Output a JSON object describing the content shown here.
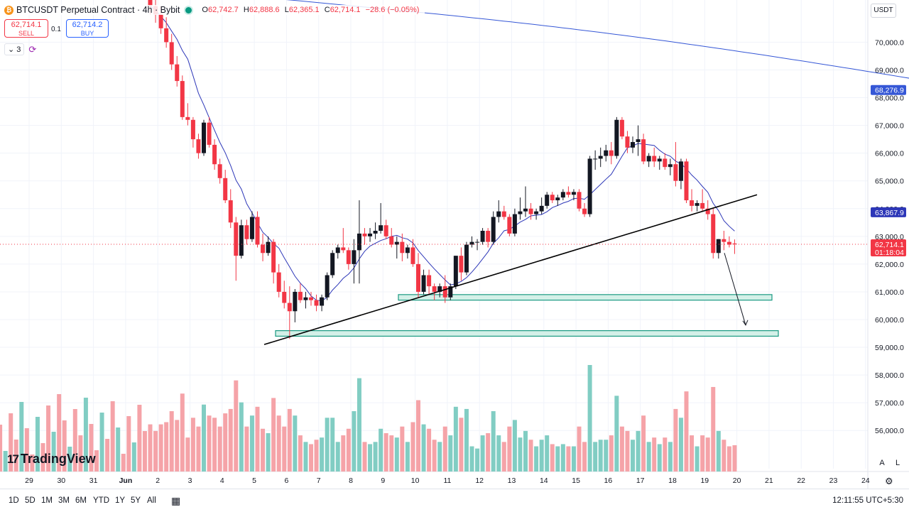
{
  "header": {
    "symbol_title": "BTCUSDT Perpetual Contract · 4h · Bybit",
    "ohlc": [
      {
        "k": "O",
        "v": "62,742.7"
      },
      {
        "k": "H",
        "v": "62,888.6"
      },
      {
        "k": "L",
        "v": "62,365.1"
      },
      {
        "k": "C",
        "v": "62,714.1"
      },
      {
        "k": "",
        "v": "−28.6 (−0.05%)"
      }
    ]
  },
  "trade": {
    "sell_price": "62,714.1",
    "sell_label": "SELL",
    "spread": "0.1",
    "buy_price": "62,714.2",
    "buy_label": "BUY"
  },
  "indicators_count": "3",
  "currency": "USDT",
  "logo_text": "TradingView",
  "timeframes": [
    "1D",
    "5D",
    "1M",
    "3M",
    "6M",
    "YTD",
    "1Y",
    "5Y",
    "All"
  ],
  "clock": "12:11:55 UTC+5:30",
  "scale_buttons": {
    "auto": "A",
    "log": "L"
  },
  "colors": {
    "up": "#131722",
    "down": "#f23645",
    "vol_up": "#81cdc3",
    "vol_down": "#f5a3a8",
    "ma_fast": "#2d37b8",
    "ma_slow": "#3557d6",
    "zone_fill": "#d4f0e8",
    "zone_stroke": "#1a9a82"
  },
  "chart_data": {
    "type": "candlestick",
    "timeframe": "4h",
    "ylim": [
      55200,
      71500
    ],
    "y_ticks": [
      56000,
      57000,
      58000,
      59000,
      60000,
      61000,
      62000,
      63000,
      64000,
      65000,
      66000,
      67000,
      68000,
      69000,
      70000
    ],
    "x_ticks": [
      "29",
      "30",
      "31",
      "Jun",
      "2",
      "3",
      "4",
      "5",
      "6",
      "7",
      "8",
      "9",
      "10",
      "11",
      "12",
      "13",
      "14",
      "15",
      "16",
      "17",
      "18",
      "19",
      "20",
      "21",
      "22",
      "23",
      "24"
    ],
    "candles": [
      [
        71800,
        72000,
        71000,
        71300
      ],
      [
        71300,
        71600,
        70700,
        71000
      ],
      [
        71000,
        71300,
        70300,
        70500
      ],
      [
        70500,
        70900,
        69800,
        70000
      ],
      [
        70000,
        70300,
        69000,
        69200
      ],
      [
        69200,
        69500,
        68400,
        68600
      ],
      [
        68600,
        68800,
        67200,
        67300
      ],
      [
        67300,
        67800,
        67000,
        67200
      ],
      [
        67200,
        67300,
        66200,
        66500
      ],
      [
        66500,
        66700,
        65800,
        66000
      ],
      [
        66000,
        67200,
        65900,
        67100
      ],
      [
        67100,
        67300,
        66200,
        66300
      ],
      [
        66300,
        66500,
        65400,
        65600
      ],
      [
        65600,
        65800,
        64900,
        65100
      ],
      [
        65100,
        65400,
        64200,
        64300
      ],
      [
        64300,
        64700,
        63300,
        63500
      ],
      [
        63500,
        63700,
        61400,
        62300
      ],
      [
        62300,
        63600,
        62200,
        63400
      ],
      [
        63400,
        63600,
        62700,
        62900
      ],
      [
        62900,
        63900,
        62800,
        63700
      ],
      [
        63700,
        63900,
        62600,
        62700
      ],
      [
        62700,
        63100,
        62100,
        62400
      ],
      [
        62400,
        63000,
        62300,
        62800
      ],
      [
        62800,
        62900,
        61300,
        61700
      ],
      [
        61700,
        62000,
        60800,
        61000
      ],
      [
        61000,
        61400,
        60400,
        60600
      ],
      [
        60600,
        61200,
        59300,
        60300
      ],
      [
        60300,
        61100,
        59900,
        61000
      ],
      [
        61000,
        61300,
        60600,
        60700
      ],
      [
        60700,
        61000,
        60400,
        60800
      ],
      [
        60800,
        61000,
        60500,
        60700
      ],
      [
        60700,
        60900,
        60300,
        60500
      ],
      [
        60500,
        60900,
        60300,
        60800
      ],
      [
        60800,
        61700,
        60700,
        61600
      ],
      [
        61600,
        62500,
        61500,
        62400
      ],
      [
        62400,
        62700,
        62200,
        62600
      ],
      [
        62600,
        63300,
        62400,
        62500
      ],
      [
        62500,
        62600,
        61800,
        62000
      ],
      [
        62000,
        62900,
        61300,
        62500
      ],
      [
        62500,
        64300,
        61300,
        63100
      ],
      [
        63100,
        63300,
        62700,
        63000
      ],
      [
        63000,
        63300,
        62800,
        63100
      ],
      [
        63100,
        63500,
        62900,
        63200
      ],
      [
        63200,
        64200,
        63100,
        63400
      ],
      [
        63400,
        63600,
        62900,
        63000
      ],
      [
        63000,
        63300,
        62600,
        62700
      ],
      [
        62700,
        63000,
        62200,
        62800
      ],
      [
        62800,
        63100,
        62100,
        62400
      ],
      [
        62400,
        62700,
        62200,
        62600
      ],
      [
        62600,
        62900,
        61900,
        62000
      ],
      [
        62000,
        62400,
        60800,
        61000
      ],
      [
        61000,
        61800,
        60900,
        61600
      ],
      [
        61600,
        61800,
        60900,
        61200
      ],
      [
        61200,
        61300,
        60700,
        61000
      ],
      [
        61000,
        61300,
        60800,
        61200
      ],
      [
        61200,
        61600,
        60600,
        60800
      ],
      [
        60800,
        61300,
        60700,
        61200
      ],
      [
        61200,
        62300,
        61100,
        62300
      ],
      [
        62300,
        62600,
        61400,
        61700
      ],
      [
        61700,
        62800,
        61600,
        62700
      ],
      [
        62700,
        63000,
        62600,
        62800
      ],
      [
        62800,
        62900,
        62500,
        62800
      ],
      [
        62800,
        63300,
        62700,
        63200
      ],
      [
        63200,
        63300,
        62600,
        62800
      ],
      [
        62800,
        63900,
        62700,
        63700
      ],
      [
        63700,
        64300,
        63500,
        63900
      ],
      [
        63900,
        64100,
        63600,
        63700
      ],
      [
        63700,
        63800,
        63000,
        63100
      ],
      [
        63100,
        64000,
        63000,
        63800
      ],
      [
        63800,
        64400,
        63600,
        63900
      ],
      [
        63900,
        64800,
        63700,
        64000
      ],
      [
        64000,
        64200,
        63600,
        63800
      ],
      [
        63800,
        64000,
        63600,
        63900
      ],
      [
        63900,
        64400,
        63800,
        64100
      ],
      [
        64100,
        64600,
        64000,
        64500
      ],
      [
        64500,
        64600,
        64200,
        64300
      ],
      [
        64300,
        64500,
        64100,
        64400
      ],
      [
        64400,
        64700,
        64300,
        64600
      ],
      [
        64600,
        64800,
        64400,
        64500
      ],
      [
        64500,
        64700,
        64300,
        64600
      ],
      [
        64600,
        64700,
        63900,
        64000
      ],
      [
        64000,
        64200,
        63700,
        63800
      ],
      [
        63800,
        65900,
        63700,
        65800
      ],
      [
        65800,
        66100,
        65400,
        65800
      ],
      [
        65800,
        66200,
        65500,
        65900
      ],
      [
        65900,
        66300,
        65700,
        66100
      ],
      [
        66100,
        66400,
        65600,
        65900
      ],
      [
        65900,
        67300,
        65800,
        67200
      ],
      [
        67200,
        67300,
        66500,
        66600
      ],
      [
        66600,
        66800,
        66000,
        66200
      ],
      [
        66200,
        66600,
        66000,
        66400
      ],
      [
        66400,
        67000,
        65900,
        66500
      ],
      [
        66500,
        66700,
        65600,
        65700
      ],
      [
        65700,
        66000,
        65500,
        65900
      ],
      [
        65900,
        66200,
        65500,
        65700
      ],
      [
        65700,
        65900,
        65400,
        65800
      ],
      [
        65800,
        66000,
        65400,
        65500
      ],
      [
        65500,
        65800,
        65200,
        65600
      ],
      [
        65600,
        66400,
        64800,
        65000
      ],
      [
        65000,
        65800,
        64700,
        65700
      ],
      [
        65700,
        65800,
        64200,
        64300
      ],
      [
        64300,
        64700,
        63900,
        64100
      ],
      [
        64100,
        64300,
        63900,
        64200
      ],
      [
        64200,
        64700,
        63900,
        64000
      ],
      [
        64000,
        64300,
        63600,
        63800
      ],
      [
        63800,
        64000,
        62200,
        62400
      ],
      [
        62400,
        62900,
        62200,
        62900
      ],
      [
        62900,
        63200,
        62500,
        62800
      ],
      [
        62800,
        63000,
        62600,
        62700
      ],
      [
        62742.7,
        62888.6,
        62365.1,
        62714.1
      ]
    ],
    "volume_note": "volume bars drawn relative, scale not labeled",
    "last_price": "62,714.1",
    "last_price_countdown": "01:18:04",
    "ma_slow_label": "68,276.9",
    "ma_fast_label": "63,867.9",
    "support_zones": [
      {
        "from": 60700,
        "to": 60900
      },
      {
        "from": 59400,
        "to": 59600
      }
    ],
    "trendline": {
      "from": 59100,
      "to": 64500
    },
    "projection_arrow": {
      "from": 62400,
      "to": 59800
    }
  }
}
